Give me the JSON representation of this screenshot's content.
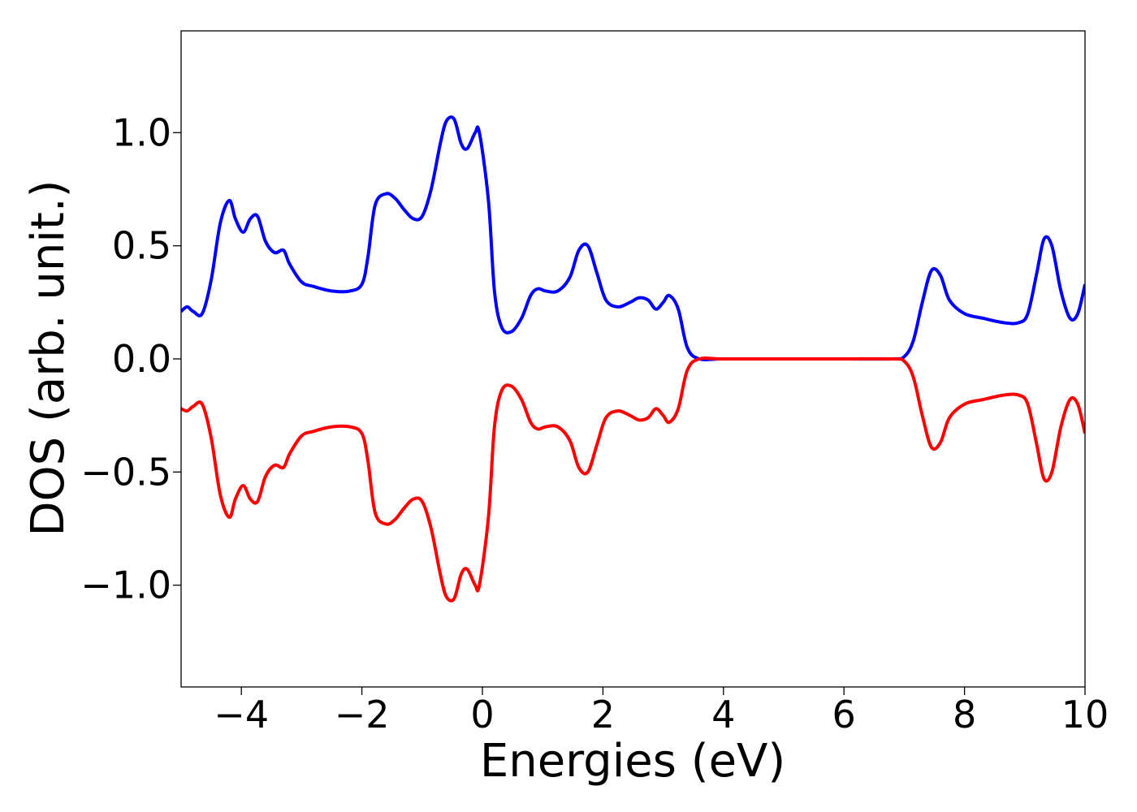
{
  "chart_data": {
    "type": "line",
    "title": "",
    "xlabel": "Energies (eV)",
    "ylabel": "DOS (arb. unit.)",
    "xlim": [
      -5,
      10
    ],
    "ylim": [
      -1.45,
      1.45
    ],
    "grid": false,
    "x_ticks": [
      -4,
      -2,
      0,
      2,
      4,
      6,
      8,
      10
    ],
    "x_tick_labels": [
      "−4",
      "−2",
      "0",
      "2",
      "4",
      "6",
      "8",
      "10"
    ],
    "y_ticks": [
      -1.0,
      -0.5,
      0.0,
      0.5,
      1.0
    ],
    "y_tick_labels": [
      "−1.0",
      "−0.5",
      "0.0",
      "0.5",
      "1.0"
    ],
    "series": [
      {
        "color": "#0000ff",
        "x": [
          -5.0,
          -4.9,
          -4.8,
          -4.65,
          -4.5,
          -4.35,
          -4.2,
          -4.1,
          -3.97,
          -3.85,
          -3.73,
          -3.6,
          -3.45,
          -3.3,
          -3.2,
          -3.0,
          -2.8,
          -2.5,
          -2.2,
          -2.0,
          -1.9,
          -1.78,
          -1.6,
          -1.45,
          -1.3,
          -1.15,
          -1.0,
          -0.85,
          -0.7,
          -0.6,
          -0.47,
          -0.35,
          -0.25,
          -0.12,
          -0.05,
          0.1,
          0.2,
          0.32,
          0.48,
          0.65,
          0.8,
          0.92,
          1.05,
          1.25,
          1.45,
          1.6,
          1.75,
          1.9,
          2.05,
          2.25,
          2.45,
          2.6,
          2.75,
          2.88,
          3.0,
          3.1,
          3.25,
          3.4,
          3.6,
          4.0,
          5.0,
          6.0,
          6.8,
          7.0,
          7.15,
          7.3,
          7.45,
          7.6,
          7.75,
          8.0,
          8.3,
          8.65,
          8.9,
          9.05,
          9.2,
          9.32,
          9.45,
          9.6,
          9.75,
          9.88,
          10.0
        ],
        "y": [
          0.21,
          0.23,
          0.21,
          0.2,
          0.35,
          0.6,
          0.7,
          0.62,
          0.56,
          0.62,
          0.63,
          0.52,
          0.47,
          0.48,
          0.42,
          0.34,
          0.32,
          0.3,
          0.3,
          0.33,
          0.45,
          0.68,
          0.73,
          0.71,
          0.66,
          0.62,
          0.63,
          0.75,
          0.95,
          1.05,
          1.06,
          0.95,
          0.93,
          1.0,
          1.0,
          0.7,
          0.3,
          0.14,
          0.12,
          0.18,
          0.28,
          0.31,
          0.3,
          0.3,
          0.36,
          0.48,
          0.5,
          0.38,
          0.26,
          0.23,
          0.25,
          0.27,
          0.26,
          0.22,
          0.25,
          0.28,
          0.22,
          0.05,
          0.0,
          0.0,
          0.0,
          0.0,
          0.0,
          0.01,
          0.08,
          0.25,
          0.39,
          0.37,
          0.26,
          0.2,
          0.18,
          0.16,
          0.16,
          0.2,
          0.38,
          0.53,
          0.5,
          0.3,
          0.18,
          0.2,
          0.33
        ]
      },
      {
        "color": "#ff0000",
        "x": [
          -5.0,
          -4.9,
          -4.8,
          -4.65,
          -4.5,
          -4.35,
          -4.2,
          -4.1,
          -3.97,
          -3.85,
          -3.73,
          -3.6,
          -3.45,
          -3.3,
          -3.2,
          -3.0,
          -2.8,
          -2.5,
          -2.2,
          -2.0,
          -1.9,
          -1.78,
          -1.6,
          -1.45,
          -1.3,
          -1.15,
          -1.0,
          -0.85,
          -0.7,
          -0.6,
          -0.47,
          -0.35,
          -0.25,
          -0.12,
          -0.05,
          0.1,
          0.2,
          0.32,
          0.48,
          0.65,
          0.8,
          0.92,
          1.05,
          1.25,
          1.45,
          1.6,
          1.75,
          1.9,
          2.05,
          2.25,
          2.45,
          2.6,
          2.75,
          2.88,
          3.0,
          3.1,
          3.25,
          3.4,
          3.6,
          4.0,
          5.0,
          6.0,
          6.8,
          7.0,
          7.15,
          7.3,
          7.45,
          7.6,
          7.75,
          8.0,
          8.3,
          8.65,
          8.9,
          9.05,
          9.2,
          9.32,
          9.45,
          9.6,
          9.75,
          9.88,
          10.0
        ],
        "y": [
          -0.22,
          -0.23,
          -0.21,
          -0.2,
          -0.35,
          -0.6,
          -0.7,
          -0.62,
          -0.56,
          -0.62,
          -0.63,
          -0.52,
          -0.47,
          -0.48,
          -0.42,
          -0.34,
          -0.32,
          -0.3,
          -0.3,
          -0.33,
          -0.45,
          -0.68,
          -0.73,
          -0.71,
          -0.66,
          -0.62,
          -0.63,
          -0.75,
          -0.95,
          -1.05,
          -1.06,
          -0.95,
          -0.93,
          -1.0,
          -1.0,
          -0.7,
          -0.3,
          -0.14,
          -0.12,
          -0.18,
          -0.28,
          -0.31,
          -0.3,
          -0.3,
          -0.36,
          -0.48,
          -0.5,
          -0.38,
          -0.26,
          -0.23,
          -0.25,
          -0.27,
          -0.26,
          -0.22,
          -0.25,
          -0.28,
          -0.22,
          -0.05,
          0.0,
          0.0,
          0.0,
          0.0,
          0.0,
          -0.01,
          -0.08,
          -0.25,
          -0.39,
          -0.37,
          -0.26,
          -0.2,
          -0.18,
          -0.16,
          -0.16,
          -0.2,
          -0.38,
          -0.53,
          -0.5,
          -0.3,
          -0.18,
          -0.2,
          -0.33
        ]
      }
    ]
  }
}
